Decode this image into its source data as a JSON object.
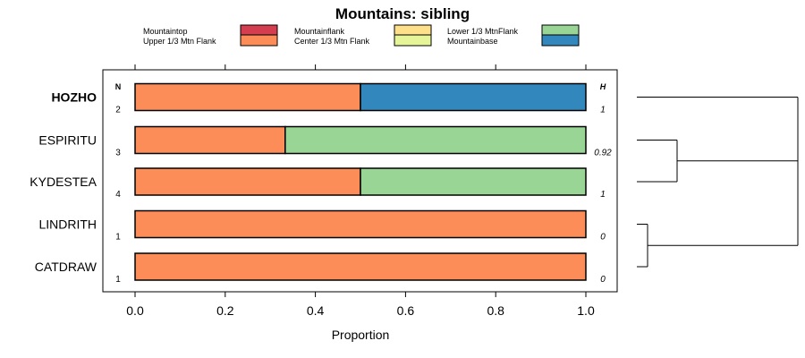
{
  "chart_data": {
    "type": "bar",
    "stacked": true,
    "orientation": "horizontal",
    "title": "Mountains: sibling",
    "xlabel": "Proportion",
    "xlim": [
      0,
      1
    ],
    "xticks": [
      "0.0",
      "0.2",
      "0.4",
      "0.6",
      "0.8",
      "1.0"
    ],
    "n_header": "N",
    "h_header": "H",
    "legend": [
      {
        "label": "Mountaintop",
        "color": "#d53e4f"
      },
      {
        "label": "Upper 1/3 Mtn Flank",
        "color": "#fc8d59"
      },
      {
        "label": "Mountainflank",
        "color": "#fee08b"
      },
      {
        "label": "Center 1/3 Mtn Flank",
        "color": "#e6f598"
      },
      {
        "label": "Lower 1/3 MtnFlank",
        "color": "#99d594"
      },
      {
        "label": "Mountainbase",
        "color": "#3288bd"
      }
    ],
    "rows": [
      {
        "label": "HOZHO",
        "bold": true,
        "n": "2",
        "h": "1",
        "segments": [
          {
            "class": "Upper 1/3 Mtn Flank",
            "value": 0.5
          },
          {
            "class": "Mountainbase",
            "value": 0.5
          }
        ]
      },
      {
        "label": "ESPIRITU",
        "bold": false,
        "n": "3",
        "h": "0.92",
        "segments": [
          {
            "class": "Upper 1/3 Mtn Flank",
            "value": 0.333
          },
          {
            "class": "Lower 1/3 MtnFlank",
            "value": 0.667
          }
        ]
      },
      {
        "label": "KYDESTEA",
        "bold": false,
        "n": "4",
        "h": "1",
        "segments": [
          {
            "class": "Upper 1/3 Mtn Flank",
            "value": 0.5
          },
          {
            "class": "Lower 1/3 MtnFlank",
            "value": 0.5
          }
        ]
      },
      {
        "label": "LINDRITH",
        "bold": false,
        "n": "1",
        "h": "0",
        "segments": [
          {
            "class": "Upper 1/3 Mtn Flank",
            "value": 1.0
          }
        ]
      },
      {
        "label": "CATDRAW",
        "bold": false,
        "n": "1",
        "h": "0",
        "segments": [
          {
            "class": "Upper 1/3 Mtn Flank",
            "value": 1.0
          }
        ]
      }
    ],
    "dendrogram": {
      "note": "HOZHO joins the cluster of (ESPIRITU, KYDESTEA) and (LINDRITH, CATDRAW) at the top level"
    }
  }
}
